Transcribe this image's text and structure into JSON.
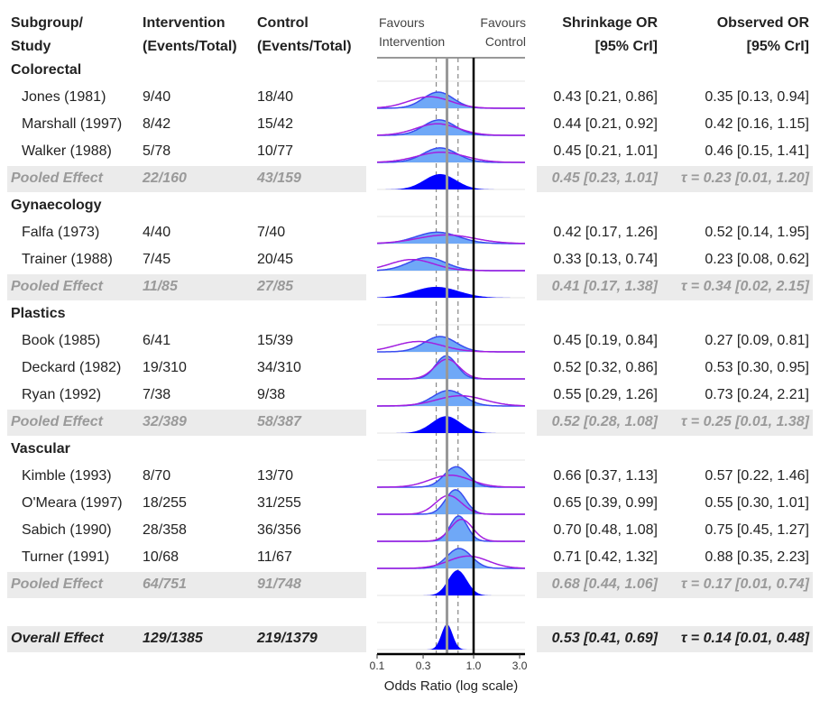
{
  "headers": {
    "study": [
      "Subgroup/",
      "Study"
    ],
    "intervention": [
      "Intervention",
      "(Events/Total)"
    ],
    "control": [
      "Control",
      "(Events/Total)"
    ],
    "shrinkage": [
      "Shrinkage OR",
      "[95% CrI]"
    ],
    "observed": [
      "Observed OR",
      "[95% CrI]"
    ]
  },
  "favours": {
    "left": [
      "Favours",
      "Intervention"
    ],
    "right": [
      "Favours",
      "Control"
    ]
  },
  "chart_data": {
    "type": "ridgeline-forest",
    "xlabel": "Odds Ratio (log scale)",
    "xscale": "log",
    "xlim": [
      0.1,
      3.2
    ],
    "ticks": [
      "0.1",
      "0.3",
      "1.0",
      "3.0"
    ],
    "tick_values": [
      0.1,
      0.3,
      1.0,
      3.0
    ],
    "reference_lines": {
      "null": 1.0,
      "overall": 0.53,
      "overall_lo": 0.41,
      "overall_hi": 0.69
    },
    "colors": {
      "fill": "#6fa8f7",
      "outline": "#3a4cf0",
      "observed": "#a21fe0",
      "pooled": "#0000ff",
      "null": "#000000",
      "overall": "#999999"
    },
    "rows": [
      {
        "type": "group",
        "label": "Colorectal"
      },
      {
        "type": "study",
        "label": "Jones (1981)",
        "int": "9/40",
        "ctl": "18/40",
        "shrink_text": "0.43 [0.21, 0.86]",
        "obs_text": "0.35 [0.13, 0.94]",
        "shrink": [
          0.43,
          0.21,
          0.86
        ],
        "obs": [
          0.35,
          0.13,
          0.94
        ]
      },
      {
        "type": "study",
        "label": "Marshall (1997)",
        "int": "8/42",
        "ctl": "15/42",
        "shrink_text": "0.44 [0.21, 0.92]",
        "obs_text": "0.42 [0.16, 1.15]",
        "shrink": [
          0.44,
          0.21,
          0.92
        ],
        "obs": [
          0.42,
          0.16,
          1.15
        ]
      },
      {
        "type": "study",
        "label": "Walker (1988)",
        "int": "5/78",
        "ctl": "10/77",
        "shrink_text": "0.45 [0.21, 1.01]",
        "obs_text": "0.46 [0.15, 1.41]",
        "shrink": [
          0.45,
          0.21,
          1.01
        ],
        "obs": [
          0.46,
          0.15,
          1.41
        ]
      },
      {
        "type": "pooled",
        "label": "Pooled Effect",
        "int": "22/160",
        "ctl": "43/159",
        "shrink_text": "0.45 [0.23, 1.01]",
        "obs_text": "τ = 0.23 [0.01, 1.20]",
        "shrink": [
          0.45,
          0.23,
          1.01
        ]
      },
      {
        "type": "group",
        "label": "Gynaecology"
      },
      {
        "type": "study",
        "label": "Falfa (1973)",
        "int": "4/40",
        "ctl": "7/40",
        "shrink_text": "0.42 [0.17, 1.26]",
        "obs_text": "0.52 [0.14, 1.95]",
        "shrink": [
          0.42,
          0.17,
          1.26
        ],
        "obs": [
          0.52,
          0.14,
          1.95
        ]
      },
      {
        "type": "study",
        "label": "Trainer (1988)",
        "int": "7/45",
        "ctl": "20/45",
        "shrink_text": "0.33 [0.13, 0.74]",
        "obs_text": "0.23 [0.08, 0.62]",
        "shrink": [
          0.33,
          0.13,
          0.74
        ],
        "obs": [
          0.23,
          0.08,
          0.62
        ]
      },
      {
        "type": "pooled",
        "label": "Pooled Effect",
        "int": "11/85",
        "ctl": "27/85",
        "shrink_text": "0.41 [0.17, 1.38]",
        "obs_text": "τ = 0.34 [0.02, 2.15]",
        "shrink": [
          0.41,
          0.17,
          1.38
        ]
      },
      {
        "type": "group",
        "label": "Plastics"
      },
      {
        "type": "study",
        "label": "Book (1985)",
        "int": "6/41",
        "ctl": "15/39",
        "shrink_text": "0.45 [0.19, 0.84]",
        "obs_text": "0.27 [0.09, 0.81]",
        "shrink": [
          0.45,
          0.19,
          0.84
        ],
        "obs": [
          0.27,
          0.09,
          0.81
        ]
      },
      {
        "type": "study",
        "label": "Deckard (1982)",
        "int": "19/310",
        "ctl": "34/310",
        "shrink_text": "0.52 [0.32, 0.86]",
        "obs_text": "0.53 [0.30, 0.95]",
        "shrink": [
          0.52,
          0.32,
          0.86
        ],
        "obs": [
          0.53,
          0.3,
          0.95
        ]
      },
      {
        "type": "study",
        "label": "Ryan (1992)",
        "int": "7/38",
        "ctl": "9/38",
        "shrink_text": "0.55 [0.29, 1.26]",
        "obs_text": "0.73 [0.24, 2.21]",
        "shrink": [
          0.55,
          0.29,
          1.26
        ],
        "obs": [
          0.73,
          0.24,
          2.21
        ]
      },
      {
        "type": "pooled",
        "label": "Pooled Effect",
        "int": "32/389",
        "ctl": "58/387",
        "shrink_text": "0.52 [0.28, 1.08]",
        "obs_text": "τ = 0.25 [0.01, 1.38]",
        "shrink": [
          0.52,
          0.28,
          1.08
        ]
      },
      {
        "type": "group",
        "label": "Vascular"
      },
      {
        "type": "study",
        "label": "Kimble (1993)",
        "int": "8/70",
        "ctl": "13/70",
        "shrink_text": "0.66 [0.37, 1.13]",
        "obs_text": "0.57 [0.22, 1.46]",
        "shrink": [
          0.66,
          0.37,
          1.13
        ],
        "obs": [
          0.57,
          0.22,
          1.46
        ]
      },
      {
        "type": "study",
        "label": "O'Meara (1997)",
        "int": "18/255",
        "ctl": "31/255",
        "shrink_text": "0.65 [0.39, 0.99]",
        "obs_text": "0.55 [0.30, 1.01]",
        "shrink": [
          0.65,
          0.39,
          0.99
        ],
        "obs": [
          0.55,
          0.3,
          1.01
        ]
      },
      {
        "type": "study",
        "label": "Sabich (1990)",
        "int": "28/358",
        "ctl": "36/356",
        "shrink_text": "0.70 [0.48, 1.08]",
        "obs_text": "0.75 [0.45, 1.27]",
        "shrink": [
          0.7,
          0.48,
          1.08
        ],
        "obs": [
          0.75,
          0.45,
          1.27
        ]
      },
      {
        "type": "study",
        "label": "Turner (1991)",
        "int": "10/68",
        "ctl": "11/67",
        "shrink_text": "0.71 [0.42, 1.32]",
        "obs_text": "0.88 [0.35, 2.23]",
        "shrink": [
          0.71,
          0.42,
          1.32
        ],
        "obs": [
          0.88,
          0.35,
          2.23
        ]
      },
      {
        "type": "pooled",
        "label": "Pooled Effect",
        "int": "64/751",
        "ctl": "91/748",
        "shrink_text": "0.68 [0.44, 1.06]",
        "obs_text": "τ = 0.17 [0.01, 0.74]",
        "shrink": [
          0.68,
          0.44,
          1.06
        ]
      },
      {
        "type": "blank"
      },
      {
        "type": "overall",
        "label": "Overall Effect",
        "int": "129/1385",
        "ctl": "219/1379",
        "shrink_text": "0.53 [0.41, 0.69]",
        "obs_text": "τ = 0.14 [0.01, 0.48]",
        "shrink": [
          0.53,
          0.41,
          0.69
        ]
      }
    ]
  }
}
